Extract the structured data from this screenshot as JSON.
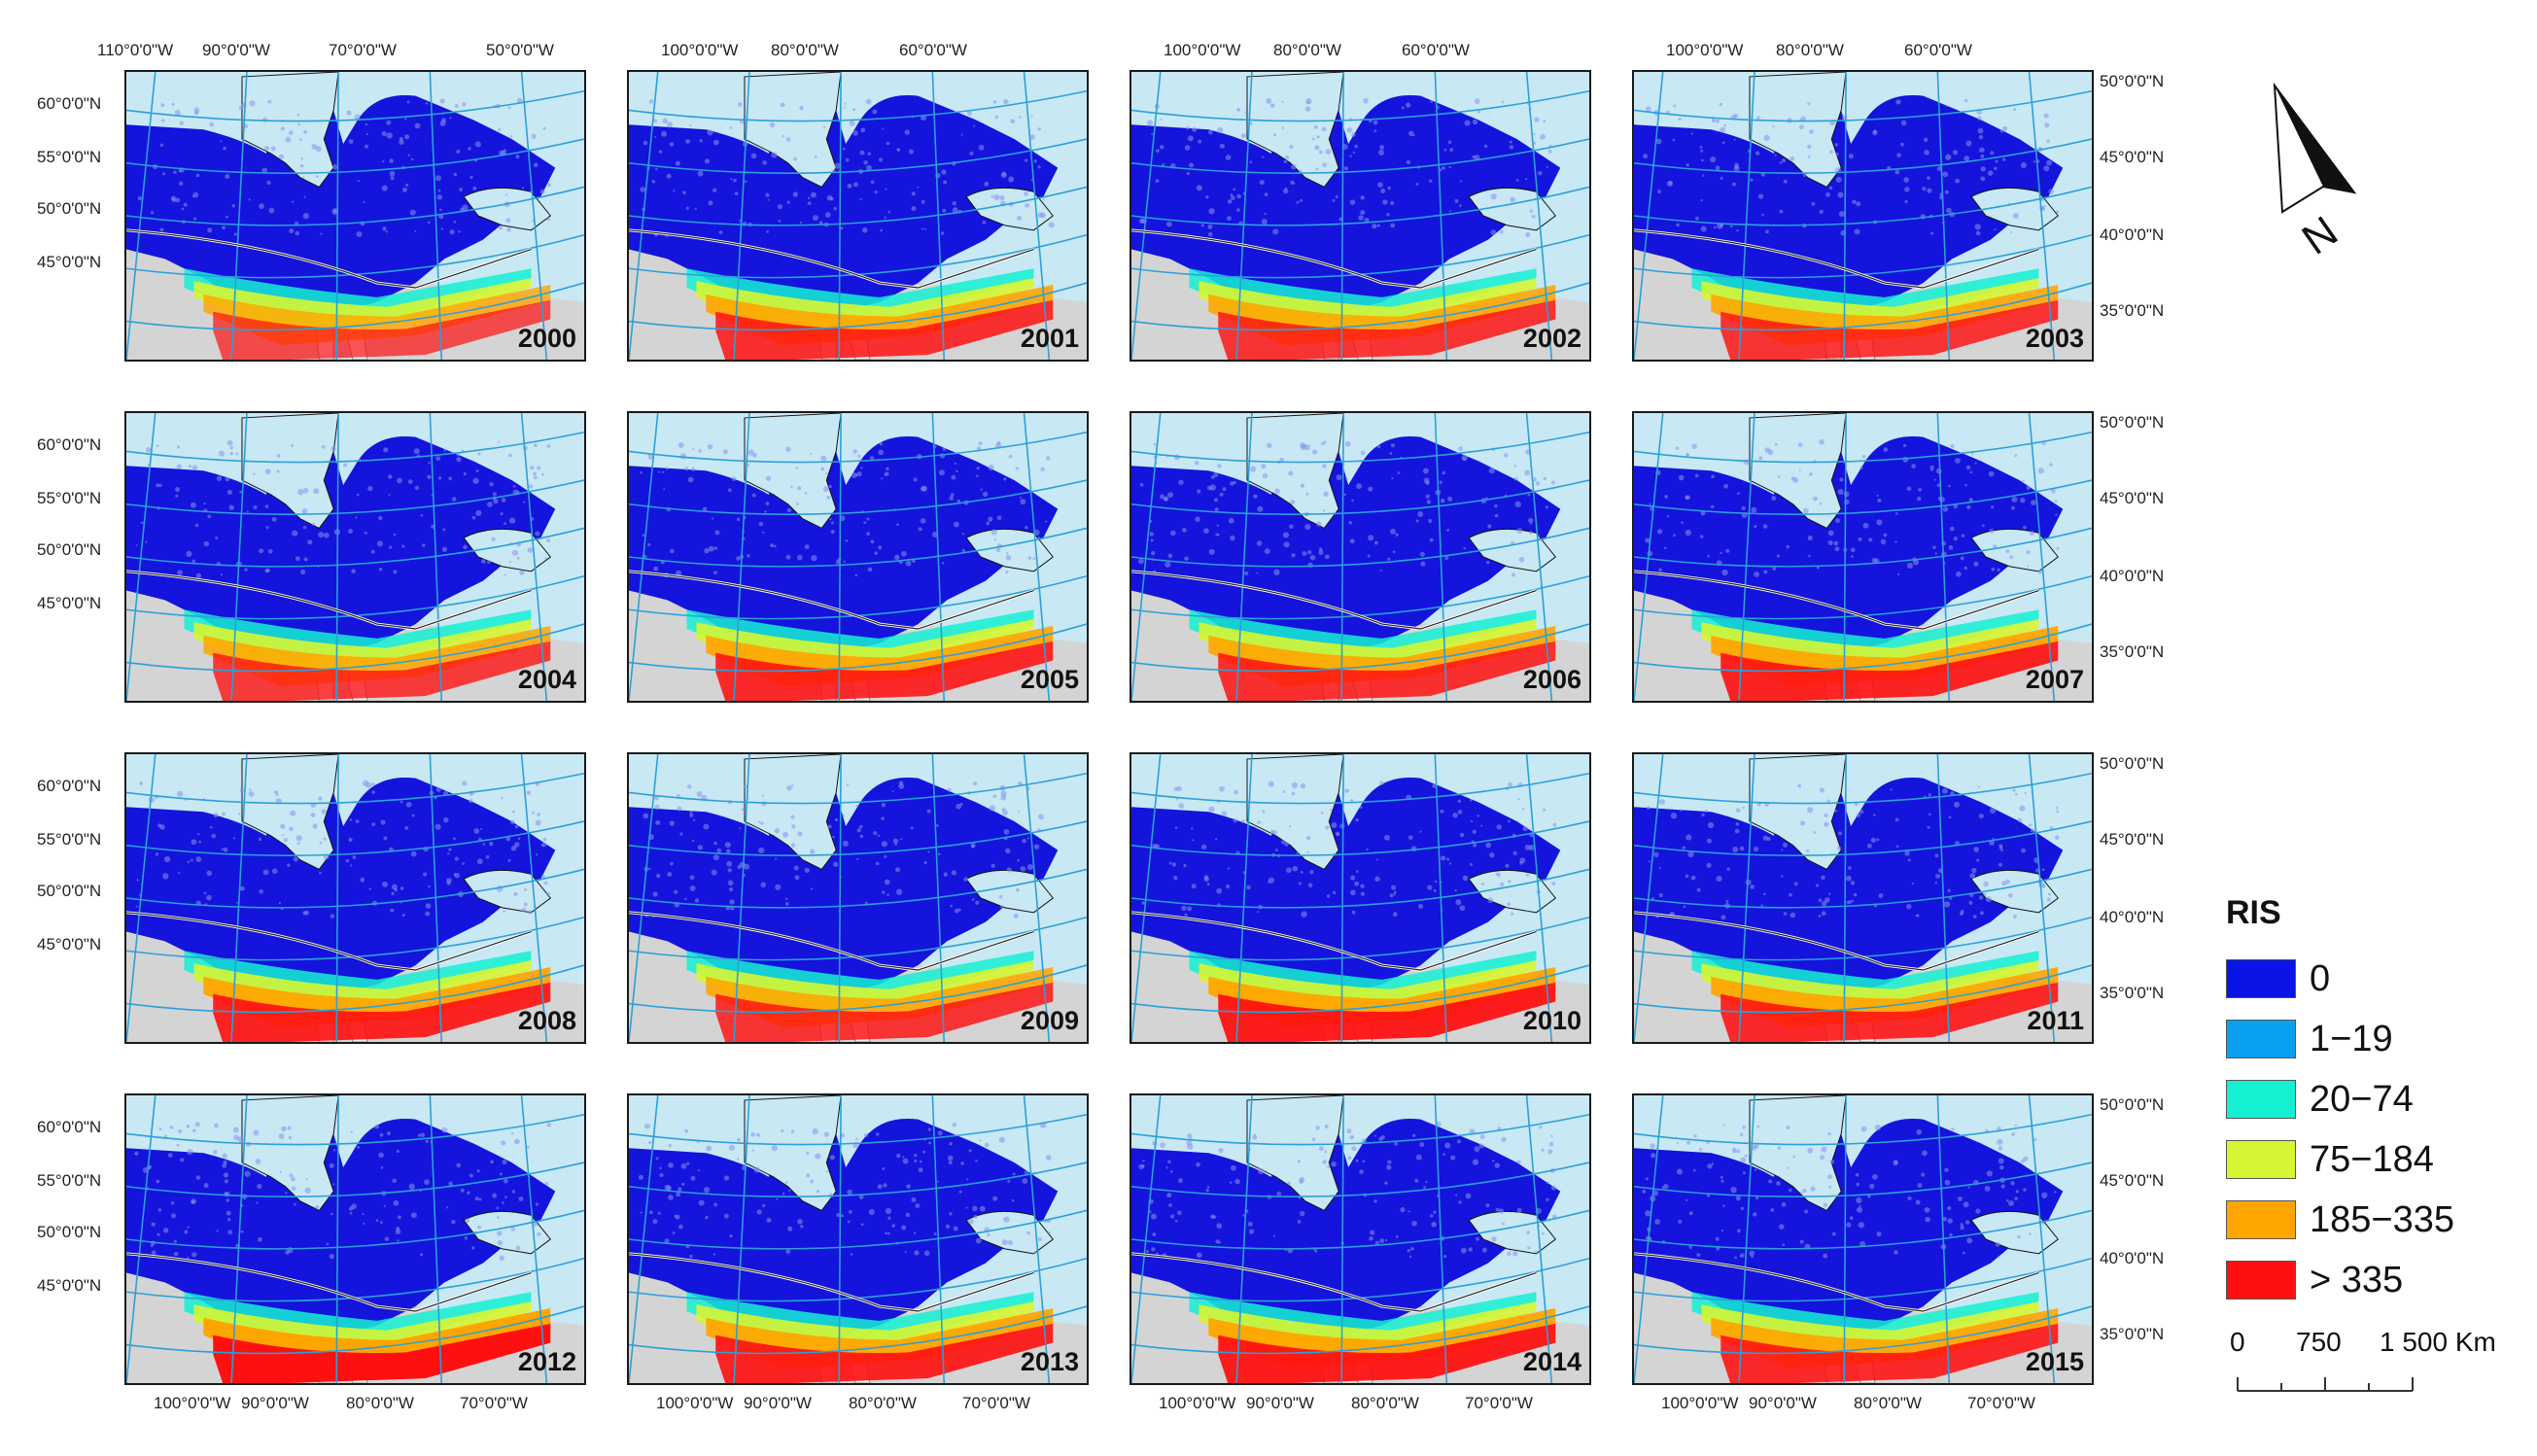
{
  "panels": [
    {
      "year": "2000"
    },
    {
      "year": "2001"
    },
    {
      "year": "2002"
    },
    {
      "year": "2003"
    },
    {
      "year": "2004"
    },
    {
      "year": "2005"
    },
    {
      "year": "2006"
    },
    {
      "year": "2007"
    },
    {
      "year": "2008"
    },
    {
      "year": "2009"
    },
    {
      "year": "2010"
    },
    {
      "year": "2011"
    },
    {
      "year": "2012"
    },
    {
      "year": "2013"
    },
    {
      "year": "2014"
    },
    {
      "year": "2015"
    }
  ],
  "axes": {
    "top_col1": [
      "110°0'0\"W",
      "90°0'0\"W",
      "70°0'0\"W",
      "50°0'0\"W"
    ],
    "top_col2to4": [
      "100°0'0\"W",
      "80°0'0\"W",
      "60°0'0\"W"
    ],
    "bottom": [
      "100°0'0\"W",
      "90°0'0\"W",
      "80°0'0\"W",
      "70°0'0\"W"
    ],
    "left": [
      "60°0'0\"N",
      "55°0'0\"N",
      "50°0'0\"N",
      "45°0'0\"N"
    ],
    "right": [
      "50°0'0\"N",
      "45°0'0\"N",
      "40°0'0\"N",
      "35°0'0\"N"
    ]
  },
  "legend": {
    "title": "RIS",
    "items": [
      {
        "label": "0",
        "color": "#0a14e6"
      },
      {
        "label": "1−19",
        "color": "#0aa0f0"
      },
      {
        "label": "20−74",
        "color": "#14f0d2"
      },
      {
        "label": "75−184",
        "color": "#d7f532"
      },
      {
        "label": "185−335",
        "color": "#ffa500"
      },
      {
        "label": "> 335",
        "color": "#ff1010"
      }
    ]
  },
  "scale_bar": {
    "labels": [
      "0",
      "750",
      "1 500 Km"
    ]
  },
  "north_arrow": {
    "label": "N"
  },
  "colors": {
    "ocean": "#c8e8f4",
    "us_land": "#d4d4d4",
    "forest_blue": "#1414dc",
    "graticule": "#2aa0d8"
  }
}
